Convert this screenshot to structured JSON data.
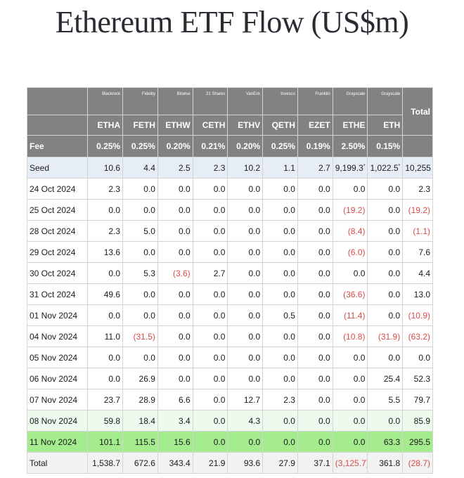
{
  "title": "Ethereum ETF Flow (US$m)",
  "colors": {
    "header_bg": "#828282",
    "seed_bg": "#e7edf7",
    "highlight_green": "#a4ec8e",
    "light_green": "#eefaee",
    "negative": "#d94a4a"
  },
  "table": {
    "issuers": [
      "Blackrock",
      "Fidelity",
      "Bitwise",
      "21 Shares",
      "VanEck",
      "Invesco",
      "Franklin",
      "Grayscale",
      "Grayscale"
    ],
    "total_label": "Total",
    "tickers": [
      "ETHA",
      "FETH",
      "ETHW",
      "CETH",
      "ETHV",
      "QETH",
      "EZET",
      "ETHE",
      "ETH"
    ],
    "fee_label": "Fee",
    "fees": [
      "0.25%",
      "0.25%",
      "0.20%",
      "0.21%",
      "0.20%",
      "0.25%",
      "0.19%",
      "2.50%",
      "0.15%"
    ],
    "rows": [
      {
        "label": "Seed",
        "values": [
          "10.6",
          "4.4",
          "2.5",
          "2.3",
          "10.2",
          "1.1",
          "2.7",
          "9,199.3*",
          "1,022.5*"
        ],
        "total": "10,255",
        "style": "seed"
      },
      {
        "label": "24 Oct 2024",
        "values": [
          "2.3",
          "0.0",
          "0.0",
          "0.0",
          "0.0",
          "0.0",
          "0.0",
          "0.0",
          "0.0"
        ],
        "total": "2.3",
        "style": ""
      },
      {
        "label": "25 Oct 2024",
        "values": [
          "0.0",
          "0.0",
          "0.0",
          "0.0",
          "0.0",
          "0.0",
          "0.0",
          "(19.2)",
          "0.0"
        ],
        "total": "(19.2)",
        "style": ""
      },
      {
        "label": "28 Oct 2024",
        "values": [
          "2.3",
          "5.0",
          "0.0",
          "0.0",
          "0.0",
          "0.0",
          "0.0",
          "(8.4)",
          "0.0"
        ],
        "total": "(1.1)",
        "style": ""
      },
      {
        "label": "29 Oct 2024",
        "values": [
          "13.6",
          "0.0",
          "0.0",
          "0.0",
          "0.0",
          "0.0",
          "0.0",
          "(6.0)",
          "0.0"
        ],
        "total": "7.6",
        "style": ""
      },
      {
        "label": "30 Oct 2024",
        "values": [
          "0.0",
          "5.3",
          "(3.6)",
          "2.7",
          "0.0",
          "0.0",
          "0.0",
          "0.0",
          "0.0"
        ],
        "total": "4.4",
        "style": ""
      },
      {
        "label": "31 Oct 2024",
        "values": [
          "49.6",
          "0.0",
          "0.0",
          "0.0",
          "0.0",
          "0.0",
          "0.0",
          "(36.6)",
          "0.0"
        ],
        "total": "13.0",
        "style": ""
      },
      {
        "label": "01 Nov 2024",
        "values": [
          "0.0",
          "0.0",
          "0.0",
          "0.0",
          "0.0",
          "0.5",
          "0.0",
          "(11.4)",
          "0.0"
        ],
        "total": "(10.9)",
        "style": ""
      },
      {
        "label": "04 Nov 2024",
        "values": [
          "11.0",
          "(31.5)",
          "0.0",
          "0.0",
          "0.0",
          "0.0",
          "0.0",
          "(10.8)",
          "(31.9)"
        ],
        "total": "(63.2)",
        "style": ""
      },
      {
        "label": "05 Nov 2024",
        "values": [
          "0.0",
          "0.0",
          "0.0",
          "0.0",
          "0.0",
          "0.0",
          "0.0",
          "0.0",
          "0.0"
        ],
        "total": "0.0",
        "style": ""
      },
      {
        "label": "06 Nov 2024",
        "values": [
          "0.0",
          "26.9",
          "0.0",
          "0.0",
          "0.0",
          "0.0",
          "0.0",
          "0.0",
          "25.4"
        ],
        "total": "52.3",
        "style": ""
      },
      {
        "label": "07 Nov 2024",
        "values": [
          "23.7",
          "28.9",
          "6.6",
          "0.0",
          "12.7",
          "2.3",
          "0.0",
          "0.0",
          "5.5"
        ],
        "total": "79.7",
        "style": ""
      },
      {
        "label": "08 Nov 2024",
        "values": [
          "59.8",
          "18.4",
          "3.4",
          "0.0",
          "4.3",
          "0.0",
          "0.0",
          "0.0",
          "0.0"
        ],
        "total": "85.9",
        "style": "light-green"
      },
      {
        "label": "11 Nov 2024",
        "values": [
          "101.1",
          "115.5",
          "15.6",
          "0.0",
          "0.0",
          "0.0",
          "0.0",
          "0.0",
          "63.3"
        ],
        "total": "295.5",
        "style": "green"
      },
      {
        "label": "Total",
        "values": [
          "1,538.7",
          "672.6",
          "343.4",
          "21.9",
          "93.6",
          "27.9",
          "37.1",
          "(3,125.7)",
          "361.8"
        ],
        "total": "(28.7)",
        "style": "total-row"
      }
    ]
  }
}
